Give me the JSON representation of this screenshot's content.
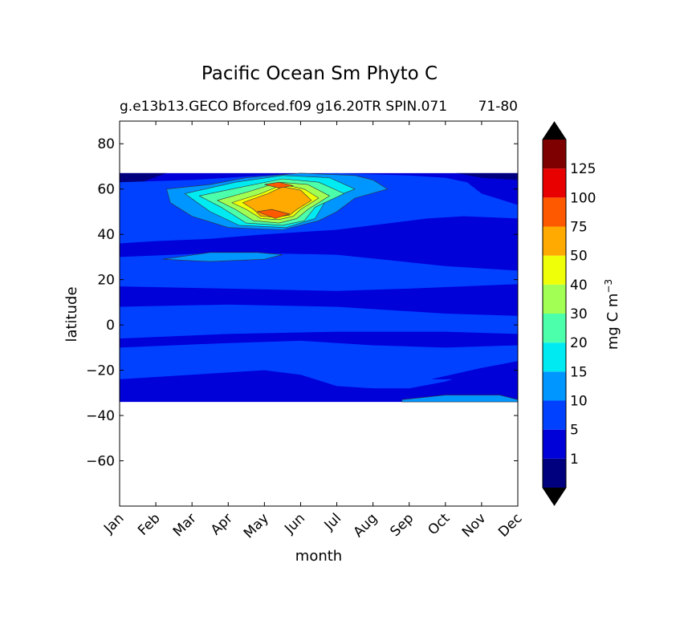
{
  "chart_data": {
    "type": "heatmap",
    "title": "Pacific Ocean Sm Phyto C",
    "subtitle": "g.e13b13.GECO Bforced.f09 g16.20TR SPIN.071",
    "subtitle_right": "71-80",
    "xlabel": "month",
    "ylabel": "latitude",
    "x_categories": [
      "Jan",
      "Feb",
      "Mar",
      "Apr",
      "May",
      "Jun",
      "Jul",
      "Aug",
      "Sep",
      "Oct",
      "Nov",
      "Dec"
    ],
    "xlim": [
      0,
      11
    ],
    "ylim": [
      -80,
      90
    ],
    "y_ticks": [
      80,
      60,
      40,
      20,
      0,
      -20,
      -40,
      -60
    ],
    "y_tick_labels": [
      "80",
      "60",
      "40",
      "20",
      "0",
      "−20",
      "−40",
      "−60"
    ],
    "data_lat_range": [
      -34,
      67
    ],
    "grid": false,
    "colorbar": {
      "label": "mg C m",
      "label_superscript": "−3",
      "extend": "both",
      "levels": [
        0,
        1,
        5,
        10,
        15,
        20,
        30,
        40,
        50,
        75,
        100,
        125,
        150
      ],
      "tick_labels": [
        "1",
        "5",
        "10",
        "15",
        "20",
        "30",
        "40",
        "50",
        "75",
        "100",
        "125"
      ],
      "colors": [
        "#00007f",
        "#0000d8",
        "#0040ff",
        "#0096ff",
        "#00eaf2",
        "#4cffaa",
        "#a2ff54",
        "#eeff07",
        "#ffaa00",
        "#ff5900",
        "#e80000",
        "#7f0000"
      ],
      "under_color": "#000000",
      "over_color": "#000000"
    },
    "regions": [
      {
        "value_class": 1,
        "points": [
          [
            0,
            67
          ],
          [
            11,
            67
          ],
          [
            11,
            -34
          ],
          [
            0,
            -34
          ]
        ]
      },
      {
        "value_class": 0,
        "points": [
          [
            0,
            67
          ],
          [
            1.3,
            67
          ],
          [
            0.6,
            63
          ],
          [
            0,
            62
          ]
        ]
      },
      {
        "value_class": 0,
        "points": [
          [
            9.3,
            67
          ],
          [
            11,
            67
          ],
          [
            11,
            64
          ],
          [
            10,
            65
          ]
        ]
      },
      {
        "value_class": 2,
        "points": [
          [
            0,
            63
          ],
          [
            2,
            64
          ],
          [
            4,
            66
          ],
          [
            6,
            67
          ],
          [
            8,
            66
          ],
          [
            9,
            65
          ],
          [
            9.6,
            63
          ],
          [
            10,
            58
          ],
          [
            11,
            53
          ],
          [
            11,
            47
          ],
          [
            9.5,
            48
          ],
          [
            8.5,
            47
          ],
          [
            7,
            44
          ],
          [
            6,
            42
          ],
          [
            4,
            40
          ],
          [
            2.5,
            38
          ],
          [
            1,
            37
          ],
          [
            0,
            36
          ]
        ]
      },
      {
        "value_class": 3,
        "points": [
          [
            1.3,
            60
          ],
          [
            2.5,
            62
          ],
          [
            3.5,
            65
          ],
          [
            5,
            67
          ],
          [
            6.5,
            66
          ],
          [
            7,
            64
          ],
          [
            7.4,
            60
          ],
          [
            6.5,
            56
          ],
          [
            6,
            50
          ],
          [
            5.5,
            46
          ],
          [
            4.5,
            42
          ],
          [
            3,
            43
          ],
          [
            2,
            48
          ],
          [
            1.4,
            54
          ]
        ]
      },
      {
        "value_class": 4,
        "points": [
          [
            1.8,
            58
          ],
          [
            3.2,
            63
          ],
          [
            4.5,
            66
          ],
          [
            5.8,
            65
          ],
          [
            6.5,
            60
          ],
          [
            5.7,
            55
          ],
          [
            5.4,
            47
          ],
          [
            4.6,
            43
          ],
          [
            3.3,
            44
          ],
          [
            2.5,
            50
          ]
        ]
      },
      {
        "value_class": 5,
        "points": [
          [
            2.2,
            57
          ],
          [
            3.4,
            61
          ],
          [
            4.5,
            64.5
          ],
          [
            5.5,
            63
          ],
          [
            6.2,
            58
          ],
          [
            5.4,
            52
          ],
          [
            5.1,
            46
          ],
          [
            4.5,
            44
          ],
          [
            3.5,
            45
          ],
          [
            2.8,
            52
          ]
        ]
      },
      {
        "value_class": 6,
        "points": [
          [
            2.7,
            55
          ],
          [
            3.6,
            59
          ],
          [
            4.4,
            63
          ],
          [
            5.2,
            62
          ],
          [
            5.8,
            57
          ],
          [
            5.2,
            51
          ],
          [
            4.9,
            47
          ],
          [
            4.4,
            45
          ],
          [
            3.7,
            46
          ],
          [
            3.2,
            51
          ]
        ]
      },
      {
        "value_class": 7,
        "points": [
          [
            3.1,
            54
          ],
          [
            3.9,
            58
          ],
          [
            4.5,
            62
          ],
          [
            5.1,
            60
          ],
          [
            5.5,
            56
          ],
          [
            5,
            51
          ],
          [
            4.8,
            48
          ],
          [
            4.4,
            46.5
          ],
          [
            3.9,
            47
          ],
          [
            3.5,
            51
          ]
        ]
      },
      {
        "value_class": 8,
        "points": [
          [
            3.4,
            54
          ],
          [
            4.1,
            58
          ],
          [
            4.5,
            61
          ],
          [
            5,
            59.5
          ],
          [
            5.3,
            55
          ],
          [
            4.9,
            51
          ],
          [
            4.7,
            48.5
          ],
          [
            4.3,
            47.5
          ],
          [
            3.9,
            48
          ],
          [
            3.7,
            51
          ]
        ]
      },
      {
        "value_class": 9,
        "points": [
          [
            4,
            62
          ],
          [
            4.4,
            63
          ],
          [
            4.8,
            61.5
          ],
          [
            4.4,
            60.5
          ]
        ]
      },
      {
        "value_class": 9,
        "points": [
          [
            3.8,
            50
          ],
          [
            4.2,
            51
          ],
          [
            4.7,
            49
          ],
          [
            4.3,
            47
          ]
        ]
      },
      {
        "value_class": 2,
        "points": [
          [
            0,
            30
          ],
          [
            3,
            32
          ],
          [
            6,
            31
          ],
          [
            9,
            26
          ],
          [
            11,
            24
          ],
          [
            11,
            18
          ],
          [
            8,
            16
          ],
          [
            6,
            15
          ],
          [
            3,
            16
          ],
          [
            0,
            17
          ]
        ]
      },
      {
        "value_class": 3,
        "points": [
          [
            1.2,
            29
          ],
          [
            2.5,
            32
          ],
          [
            3.8,
            32
          ],
          [
            4.5,
            31
          ],
          [
            4,
            29
          ],
          [
            2.5,
            28
          ]
        ]
      },
      {
        "value_class": 2,
        "points": [
          [
            0,
            8
          ],
          [
            3,
            9
          ],
          [
            6,
            8
          ],
          [
            9,
            5
          ],
          [
            11,
            4
          ],
          [
            11,
            -4
          ],
          [
            9,
            -3
          ],
          [
            6,
            -3
          ],
          [
            3,
            -4
          ],
          [
            0,
            -6
          ]
        ]
      },
      {
        "value_class": 2,
        "points": [
          [
            0,
            -10
          ],
          [
            3,
            -8
          ],
          [
            5,
            -7
          ],
          [
            7,
            -9
          ],
          [
            9,
            -10
          ],
          [
            11,
            -9
          ],
          [
            11,
            -18
          ],
          [
            10,
            -20
          ],
          [
            9,
            -25
          ],
          [
            8,
            -28
          ],
          [
            7,
            -28
          ],
          [
            6,
            -27
          ],
          [
            5,
            -22
          ],
          [
            4,
            -20
          ],
          [
            2,
            -22
          ],
          [
            0,
            -24
          ]
        ]
      },
      {
        "value_class": 3,
        "points": [
          [
            7.8,
            -33
          ],
          [
            9,
            -31
          ],
          [
            10.5,
            -31
          ],
          [
            11,
            -33
          ],
          [
            11,
            -34
          ],
          [
            7.8,
            -34
          ]
        ]
      },
      {
        "value_class": 1,
        "points": [
          [
            8.6,
            -24
          ],
          [
            10,
            -19
          ],
          [
            11,
            -16
          ],
          [
            11,
            -22
          ],
          [
            10,
            -24
          ]
        ]
      }
    ]
  }
}
